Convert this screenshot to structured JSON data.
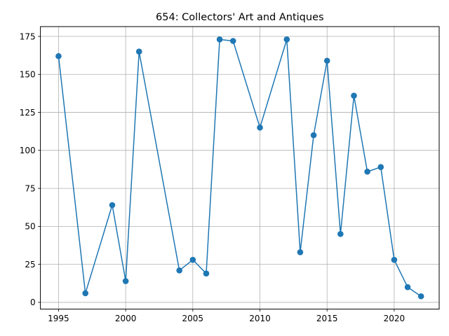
{
  "chart_data": {
    "type": "line",
    "title": "654: Collectors' Art and Antiques",
    "xlabel": "",
    "ylabel": "",
    "x": [
      1995,
      1997,
      1999,
      2000,
      2001,
      2004,
      2005,
      2006,
      2007,
      2008,
      2010,
      2012,
      2013,
      2014,
      2015,
      2016,
      2017,
      2018,
      2019,
      2020,
      2021,
      2022
    ],
    "series": [
      {
        "values": [
          162,
          6,
          64,
          14,
          165,
          21,
          28,
          19,
          173,
          172,
          115,
          173,
          33,
          110,
          159,
          45,
          136,
          86,
          89,
          28,
          10,
          4
        ],
        "color": "#1f77b4",
        "marker": "circle"
      }
    ],
    "xlim": [
      1993.65,
      2023.35
    ],
    "ylim": [
      -4.45,
      181.45
    ],
    "x_ticks": [
      "1995",
      "2000",
      "2005",
      "2010",
      "2015",
      "2020"
    ],
    "y_ticks": [
      "0",
      "25",
      "50",
      "75",
      "100",
      "125",
      "150",
      "175"
    ],
    "grid": true
  }
}
